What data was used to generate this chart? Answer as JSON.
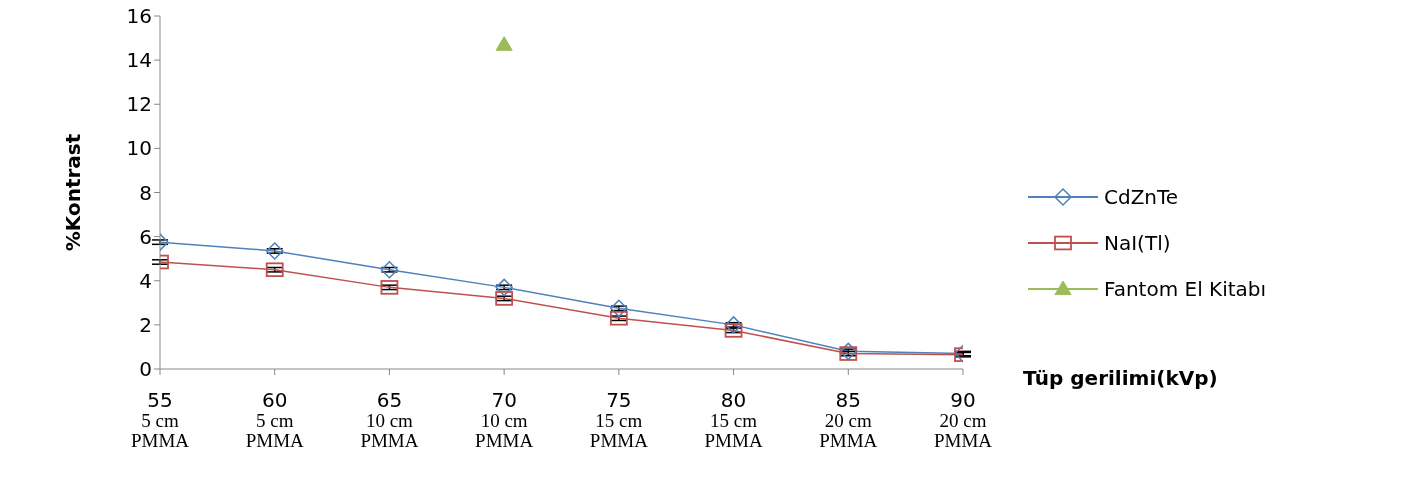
{
  "chart_data": {
    "type": "line",
    "ylabel": "%Kontrast",
    "xlabel": "Tüp gerilimi(kVp)",
    "categories": [
      "55\n5 cm\nPMMA",
      "60\n5 cm\nPMMA",
      "65\n10 cm\nPMMA",
      "70\n10 cm\nPMMA",
      "75\n15 cm\nPMMA",
      "80\n15 cm\nPMMA",
      "85\n20 cm\nPMMA",
      "90\n20 cm\nPMMA"
    ],
    "series": [
      {
        "name": "CdZnTe",
        "color": "#4f81bd",
        "marker": "diamond",
        "values": [
          5.75,
          5.35,
          4.5,
          3.7,
          2.75,
          2.0,
          0.8,
          0.7
        ],
        "errors": [
          0.1,
          0.1,
          0.1,
          0.1,
          0.1,
          0.1,
          0.1,
          0.1
        ]
      },
      {
        "name": "NaI(Tl)",
        "color": "#c0504d",
        "marker": "square",
        "values": [
          4.85,
          4.5,
          3.7,
          3.2,
          2.3,
          1.75,
          0.7,
          0.65
        ],
        "errors": [
          0.1,
          0.1,
          0.1,
          0.1,
          0.1,
          0.1,
          0.1,
          0.1
        ]
      },
      {
        "name": "Fantom El Kitabı",
        "color": "#9bbb59",
        "marker": "triangle",
        "values": [
          null,
          null,
          null,
          14.7,
          null,
          null,
          null,
          null
        ]
      }
    ],
    "ylim": [
      0,
      16
    ],
    "yticks": [
      0,
      2,
      4,
      6,
      8,
      10,
      12,
      14,
      16
    ],
    "legend": "right"
  }
}
